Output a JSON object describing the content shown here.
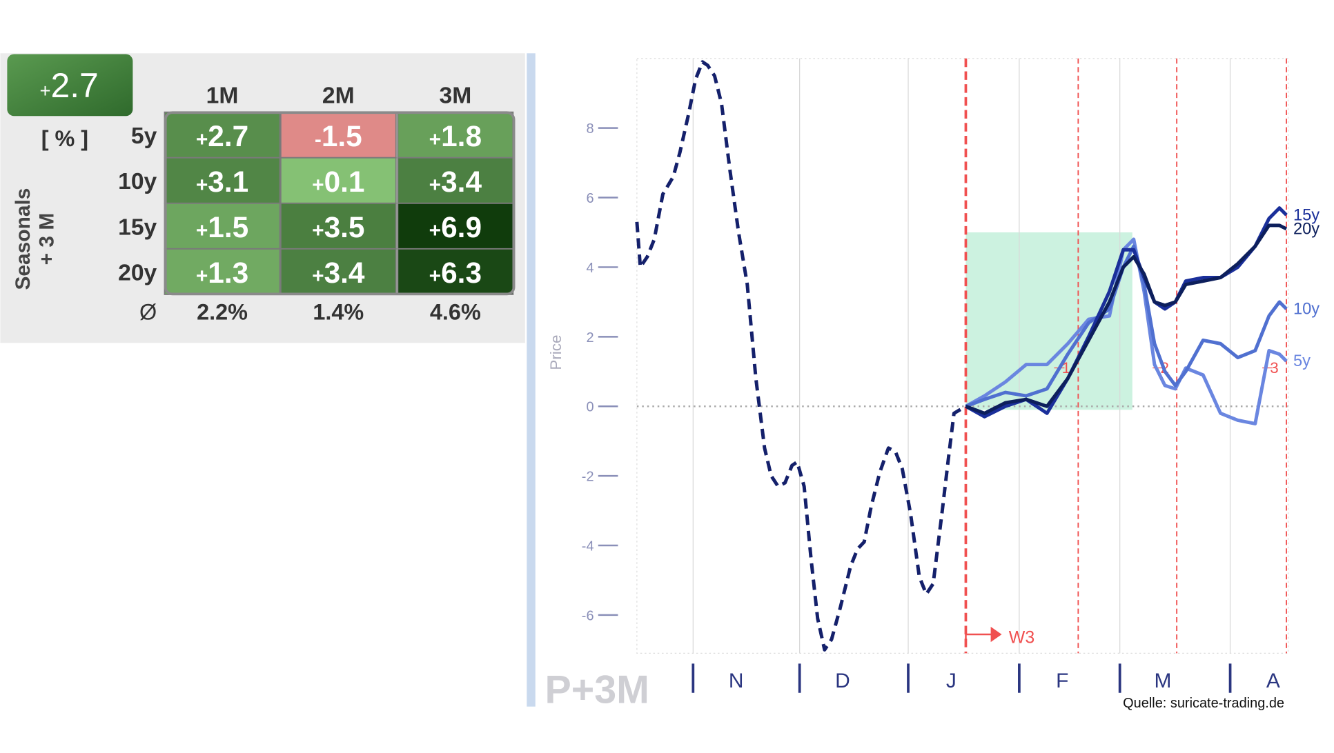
{
  "badge": "+2.7",
  "table": {
    "unit": "[ % ]",
    "side_label": [
      "Seasonals",
      "+ 3 M"
    ],
    "columns": [
      "1M",
      "2M",
      "3M"
    ],
    "rows": [
      {
        "label": "5y",
        "cells": [
          "+2.7",
          "-1.5",
          "+1.8"
        ]
      },
      {
        "label": "10y",
        "cells": [
          "+3.1",
          "+0.1",
          "+3.4"
        ]
      },
      {
        "label": "15y",
        "cells": [
          "+1.5",
          "+3.5",
          "+6.9"
        ]
      },
      {
        "label": "20y",
        "cells": [
          "+1.3",
          "+3.4",
          "+6.3"
        ]
      }
    ],
    "average_label": "Ø",
    "averages": [
      "2.2%",
      "1.4%",
      "4.6%"
    ]
  },
  "chart_data": {
    "type": "line",
    "y_label": "Price",
    "xlim": [
      -78.2,
      109.5
    ],
    "ylim": [
      -7.1,
      10
    ],
    "yticks": [
      -6,
      -4,
      -2,
      0,
      2,
      4,
      6,
      8
    ],
    "xticks": [
      {
        "value": -62,
        "label": "N"
      },
      {
        "value": -31.3,
        "label": "D"
      },
      {
        "value": 0,
        "label": "J"
      },
      {
        "value": 32,
        "label": "F"
      },
      {
        "value": 61,
        "label": "M"
      },
      {
        "value": 92.8,
        "label": "A"
      }
    ],
    "highlight": {
      "x": [
        16.6,
        64.6
      ],
      "y": [
        -0.1,
        5
      ],
      "color": "#c6f1dd"
    },
    "period_lines": [
      16.6,
      49,
      77.4,
      109
    ],
    "period_labels": [
      "1",
      "2",
      "3"
    ],
    "period_color": "#f05050",
    "annotation": "W3",
    "series": [
      {
        "color": "#14206b",
        "dashed": true,
        "x": [
          -78.2,
          -77.2,
          -75.2,
          -73.2,
          -70.7,
          -67.7,
          -65.8,
          -63.3,
          -61.3,
          -59.3,
          -57.8,
          -55.8,
          -53.8,
          -51.4,
          -48.9,
          -46.4,
          -43.9,
          -41.4,
          -39.5,
          -37.5,
          -35.5,
          -33.5,
          -32,
          -30,
          -28,
          -26.1,
          -24.1,
          -22.1,
          -19.6,
          -16.6,
          -14.6,
          -12.7,
          -10.7,
          -8.2,
          -5.7,
          -3.7,
          -1.7,
          0.7,
          3.2,
          5.2,
          7.2,
          9.7,
          11.7,
          13.2,
          16.6
        ],
        "values": [
          5.3,
          4,
          4.3,
          4.8,
          6.1,
          6.6,
          7.3,
          8.4,
          9.4,
          9.9,
          9.8,
          9.5,
          8.7,
          6.8,
          5,
          3.5,
          0.8,
          -1.2,
          -2,
          -2.3,
          -2.2,
          -1.7,
          -1.6,
          -2.3,
          -4.4,
          -6.1,
          -7,
          -6.7,
          -5.8,
          -4.6,
          -4.1,
          -3.9,
          -2.9,
          -1.9,
          -1.2,
          -1.3,
          -1.8,
          -3.1,
          -4.9,
          -5.4,
          -5.1,
          -3.1,
          -1.4,
          -0.2,
          0
        ]
      },
      {
        "name": "5y",
        "color": "#6a86e0",
        "x": [
          16.6,
          22,
          28,
          34,
          40,
          46,
          52,
          58,
          62,
          65,
          68,
          71,
          74,
          77,
          80,
          85,
          90,
          95,
          100,
          104,
          107,
          109
        ],
        "values": [
          0,
          0.3,
          0.7,
          1.2,
          1.2,
          1.8,
          2.5,
          2.6,
          4.5,
          4.8,
          3.3,
          1.2,
          0.6,
          0.5,
          1.1,
          0.9,
          -0.2,
          -0.4,
          -0.5,
          1.6,
          1.5,
          1.3
        ]
      },
      {
        "name": "10y",
        "color": "#5070d0",
        "x": [
          16.6,
          22,
          28,
          34,
          40,
          46,
          52,
          58,
          62,
          65,
          68,
          71,
          74,
          77,
          80,
          85,
          90,
          95,
          100,
          104,
          107,
          109
        ],
        "values": [
          0,
          0.2,
          0.4,
          0.3,
          0.5,
          1.5,
          2.4,
          2.8,
          4,
          4.6,
          3.5,
          1.8,
          1,
          0.6,
          1,
          1.9,
          1.8,
          1.4,
          1.6,
          2.6,
          3,
          2.8
        ]
      },
      {
        "name": "15y",
        "color": "#1a2f9a",
        "x": [
          16.6,
          22,
          28,
          34,
          40,
          46,
          52,
          58,
          62,
          65,
          68,
          71,
          74,
          77,
          80,
          85,
          90,
          95,
          100,
          104,
          107,
          109
        ],
        "values": [
          0,
          -0.3,
          0,
          0.2,
          -0.2,
          0.8,
          2,
          3.3,
          4.5,
          4.5,
          3.7,
          3,
          2.8,
          3,
          3.6,
          3.7,
          3.7,
          4,
          4.6,
          5.4,
          5.7,
          5.5
        ]
      },
      {
        "name": "20y",
        "color": "#0d1f5c",
        "x": [
          16.6,
          22,
          28,
          34,
          40,
          46,
          52,
          58,
          62,
          65,
          68,
          71,
          74,
          77,
          80,
          85,
          90,
          95,
          100,
          104,
          107,
          109
        ],
        "values": [
          0,
          -0.2,
          0.1,
          0.2,
          0,
          0.8,
          1.9,
          3,
          4,
          4.3,
          3.8,
          3,
          2.9,
          3,
          3.5,
          3.6,
          3.7,
          4.1,
          4.6,
          5.2,
          5.2,
          5.1
        ]
      }
    ]
  },
  "watermark": "P+3M",
  "source": "Quelle: suricate-trading.de"
}
